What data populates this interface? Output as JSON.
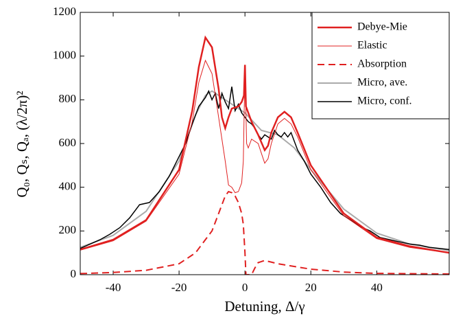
{
  "chart_data": {
    "type": "line",
    "xlabel": "Detuning, Δ/γ",
    "ylabel": "Q₀, Qₛ, Qₐ, (λ/2π)²",
    "xlim": [
      -50,
      62
    ],
    "xticks": [
      -40,
      -20,
      0,
      20,
      40
    ],
    "ylim": [
      0,
      1200
    ],
    "yticks": [
      0,
      200,
      400,
      600,
      800,
      1000,
      1200
    ],
    "legend": "upper right",
    "series": [
      {
        "name": "Debye-Mie",
        "color": "#e02020",
        "linewidth": 2.5,
        "linestyle": "solid",
        "x": [
          -50,
          -40,
          -30,
          -20,
          -16,
          -14,
          -12,
          -10,
          -8,
          -7,
          -6,
          -5,
          -4,
          -2,
          -1,
          -0.3,
          0,
          0.3,
          2,
          4,
          6,
          7,
          8,
          10,
          12,
          14,
          16,
          20,
          30,
          40,
          50,
          62
        ],
        "values": [
          115,
          160,
          250,
          480,
          750,
          950,
          1085,
          1040,
          850,
          720,
          670,
          720,
          760,
          770,
          790,
          820,
          960,
          770,
          700,
          640,
          570,
          590,
          650,
          720,
          745,
          720,
          650,
          500,
          280,
          170,
          130,
          100
        ]
      },
      {
        "name": "Elastic",
        "color": "#e02020",
        "linewidth": 1,
        "linestyle": "solid",
        "x": [
          -50,
          -40,
          -30,
          -20,
          -16,
          -14,
          -12,
          -10,
          -8,
          -6,
          -5,
          -4,
          -3,
          -2,
          -1,
          -0.5,
          0,
          0.5,
          1,
          2,
          4,
          6,
          7,
          8,
          10,
          12,
          14,
          16,
          20,
          30,
          40,
          50,
          62
        ],
        "values": [
          112,
          155,
          245,
          460,
          700,
          880,
          980,
          920,
          720,
          520,
          410,
          400,
          375,
          380,
          420,
          520,
          950,
          600,
          580,
          620,
          600,
          510,
          530,
          600,
          690,
          715,
          690,
          630,
          480,
          270,
          165,
          125,
          100
        ]
      },
      {
        "name": "Absorption",
        "color": "#e02020",
        "linewidth": 2,
        "linestyle": "dashed",
        "x": [
          -50,
          -40,
          -30,
          -20,
          -15,
          -10,
          -8,
          -6,
          -5,
          -4,
          -3,
          -2,
          -1,
          -0.5,
          0,
          0.3,
          2,
          3,
          4,
          6,
          10,
          20,
          30,
          40,
          62
        ],
        "values": [
          5,
          10,
          20,
          50,
          100,
          200,
          280,
          360,
          380,
          375,
          360,
          330,
          280,
          230,
          100,
          0,
          0,
          30,
          55,
          65,
          50,
          25,
          12,
          6,
          3
        ]
      },
      {
        "name": "Micro, ave.",
        "color": "#aaaaaa",
        "linewidth": 2,
        "linestyle": "solid",
        "x": [
          -50,
          -40,
          -30,
          -20,
          -15,
          -12,
          -10,
          -5,
          0,
          5,
          10,
          15,
          20,
          30,
          40,
          50,
          62
        ],
        "values": [
          125,
          180,
          290,
          520,
          730,
          820,
          840,
          790,
          740,
          660,
          640,
          580,
          480,
          300,
          190,
          140,
          110
        ]
      },
      {
        "name": "Micro, conf.",
        "color": "#000000",
        "linewidth": 1.5,
        "linestyle": "solid",
        "x": [
          -50,
          -47,
          -44,
          -41,
          -38,
          -35,
          -32,
          -29,
          -26,
          -23,
          -20,
          -18,
          -16,
          -14,
          -12,
          -11,
          -10,
          -9,
          -8,
          -7,
          -6,
          -5,
          -4,
          -3,
          -2,
          -1,
          0,
          1,
          2,
          3,
          4,
          5,
          6,
          7,
          8,
          9,
          10,
          11,
          12,
          13,
          14,
          16,
          18,
          20,
          23,
          26,
          29,
          32,
          35,
          38,
          41,
          44,
          47,
          50,
          53,
          56,
          59,
          62
        ],
        "values": [
          120,
          140,
          160,
          185,
          215,
          260,
          320,
          330,
          380,
          450,
          540,
          600,
          690,
          770,
          810,
          840,
          800,
          830,
          760,
          830,
          790,
          760,
          860,
          750,
          780,
          740,
          720,
          700,
          690,
          670,
          640,
          620,
          640,
          630,
          620,
          660,
          640,
          630,
          650,
          630,
          650,
          570,
          520,
          460,
          400,
          330,
          280,
          250,
          220,
          200,
          170,
          160,
          150,
          140,
          135,
          125,
          120,
          115
        ]
      }
    ]
  }
}
